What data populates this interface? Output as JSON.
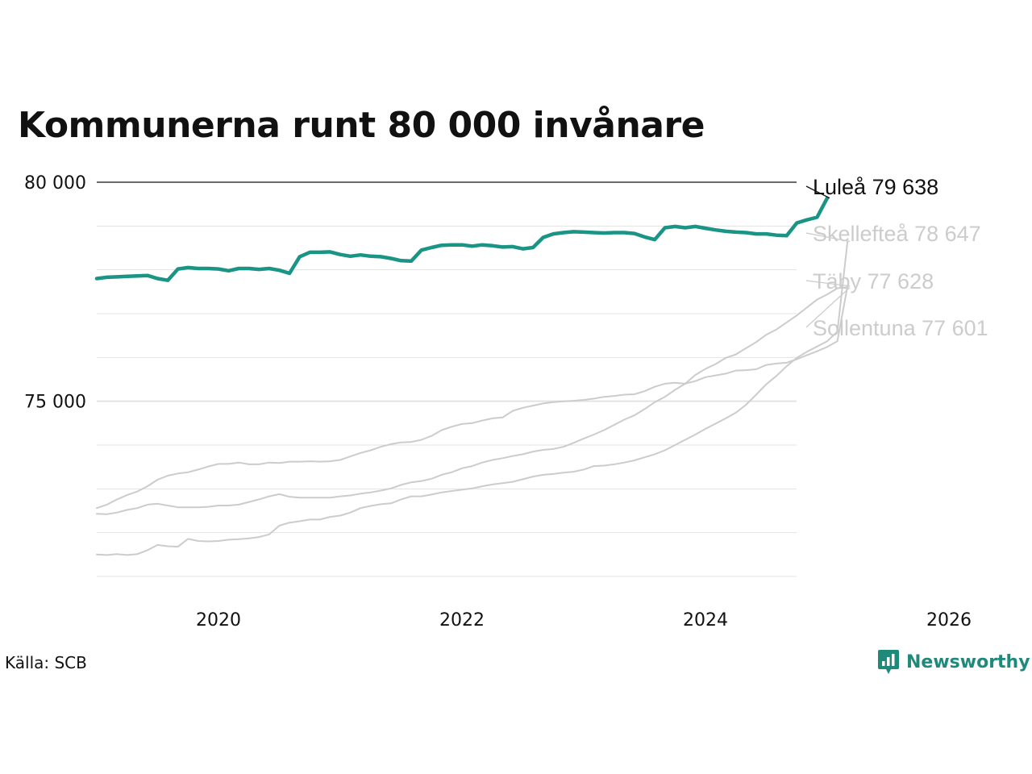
{
  "page": {
    "title": "Kommunerna runt 80 000 invånare",
    "source": "Källa: SCB",
    "brand": "Newsworthy"
  },
  "colors": {
    "highlight": "#1a9485",
    "muted": "#cccccc",
    "grid": "#e3e3e3",
    "refline": "#111111",
    "brand": "#1f8a7a"
  },
  "chart_data": {
    "type": "line",
    "title": "Kommunerna runt 80 000 invånare",
    "xlabel": "",
    "ylabel": "",
    "x_range": [
      "2019-01",
      "2026-06"
    ],
    "ylim": [
      71000,
      80000
    ],
    "x_ticks": [
      "2020",
      "2022",
      "2024",
      "2026"
    ],
    "y_ticks": [
      {
        "value": 75000,
        "label": "75 000"
      },
      {
        "value": 80000,
        "label": "80 000"
      }
    ],
    "start": "2019-01",
    "grid": true,
    "series": [
      {
        "name": "Luleå",
        "end_label": "Luleå 79 638",
        "highlight": true,
        "values": [
          77800,
          77830,
          77840,
          77850,
          77860,
          77870,
          77800,
          77760,
          78020,
          78050,
          78030,
          78030,
          78020,
          77980,
          78030,
          78030,
          78010,
          78030,
          77990,
          77920,
          78300,
          78400,
          78400,
          78410,
          78350,
          78310,
          78340,
          78310,
          78300,
          78260,
          78210,
          78200,
          78450,
          78510,
          78560,
          78570,
          78570,
          78540,
          78570,
          78550,
          78520,
          78530,
          78480,
          78510,
          78740,
          78820,
          78850,
          78870,
          78860,
          78850,
          78840,
          78850,
          78850,
          78830,
          78750,
          78690,
          78960,
          78990,
          78960,
          78990,
          78950,
          78910,
          78880,
          78860,
          78850,
          78820,
          78820,
          78790,
          78780,
          79070,
          79140,
          79200
        ],
        "last_value": 79638
      },
      {
        "name": "Skellefteå",
        "end_label": "Skellefteå 78 647",
        "highlight": false,
        "values": [
          71500,
          71490,
          71510,
          71490,
          71510,
          71600,
          71720,
          71690,
          71680,
          71860,
          71810,
          71800,
          71810,
          71840,
          71850,
          71870,
          71900,
          71960,
          72160,
          72230,
          72260,
          72300,
          72300,
          72360,
          72390,
          72460,
          72560,
          72610,
          72650,
          72670,
          72760,
          72830,
          72830,
          72870,
          72920,
          72950,
          72980,
          73010,
          73060,
          73100,
          73130,
          73160,
          73220,
          73280,
          73320,
          73340,
          73370,
          73390,
          73440,
          73520,
          73530,
          73560,
          73600,
          73650,
          73720,
          73790,
          73880,
          74000,
          74120,
          74240,
          74370,
          74490,
          74610,
          74740,
          74920,
          75150,
          75390,
          75580,
          75800,
          75990,
          76130,
          76250,
          76370,
          76590
        ],
        "last_value": 78647
      },
      {
        "name": "Täby",
        "end_label": "Täby 77 628",
        "highlight": false,
        "values": [
          72560,
          72640,
          72760,
          72860,
          72940,
          73060,
          73210,
          73300,
          73350,
          73380,
          73440,
          73510,
          73570,
          73570,
          73600,
          73560,
          73560,
          73600,
          73590,
          73620,
          73620,
          73630,
          73620,
          73630,
          73660,
          73740,
          73820,
          73880,
          73960,
          74020,
          74060,
          74070,
          74120,
          74210,
          74340,
          74420,
          74480,
          74500,
          74560,
          74610,
          74630,
          74780,
          74850,
          74900,
          74950,
          74980,
          75000,
          75010,
          75030,
          75060,
          75100,
          75120,
          75150,
          75160,
          75230,
          75330,
          75400,
          75420,
          75400,
          75460,
          75550,
          75590,
          75630,
          75700,
          75710,
          75730,
          75830,
          75860,
          75880,
          75960,
          76050,
          76140,
          76240,
          76370
        ],
        "last_value": 77628
      },
      {
        "name": "Sollentuna",
        "end_label": "Sollentuna 77 601",
        "highlight": false,
        "values": [
          72430,
          72420,
          72460,
          72520,
          72560,
          72640,
          72660,
          72620,
          72580,
          72580,
          72580,
          72590,
          72620,
          72620,
          72640,
          72700,
          72760,
          72830,
          72880,
          72820,
          72800,
          72800,
          72800,
          72800,
          72830,
          72850,
          72890,
          72920,
          72960,
          73010,
          73090,
          73150,
          73180,
          73230,
          73320,
          73380,
          73470,
          73520,
          73600,
          73660,
          73700,
          73750,
          73790,
          73850,
          73890,
          73910,
          73960,
          74050,
          74150,
          74240,
          74340,
          74460,
          74580,
          74680,
          74820,
          74980,
          75100,
          75260,
          75400,
          75600,
          75740,
          75850,
          75990,
          76070,
          76210,
          76350,
          76520,
          76640,
          76800,
          76960,
          77140,
          77320,
          77440,
          77580
        ],
        "last_value": 77601
      }
    ]
  }
}
